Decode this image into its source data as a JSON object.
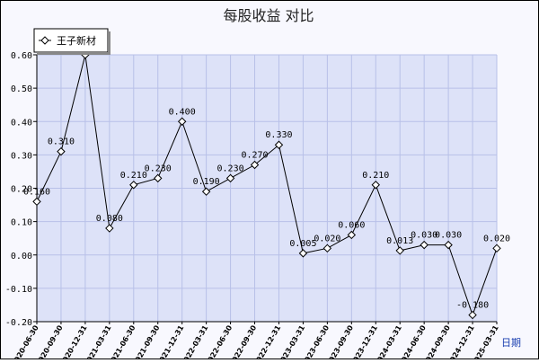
{
  "chart_data": {
    "type": "line",
    "title": "每股收益  对比",
    "xlabel": "日期",
    "ylabel": "",
    "ylim": [
      -0.2,
      0.6
    ],
    "yticks": [
      "0.60",
      "0.50",
      "0.40",
      "0.30",
      "0.20",
      "0.10",
      "0.00",
      "-0.10",
      "-0.20"
    ],
    "grid": true,
    "legend_position": "top-left",
    "categories": [
      "2020-06-30",
      "2020-09-30",
      "2020-12-31",
      "2021-03-31",
      "2021-06-30",
      "2021-09-30",
      "2021-12-31",
      "2022-03-31",
      "2022-06-30",
      "2022-09-30",
      "2022-12-31",
      "2023-03-31",
      "2023-06-30",
      "2023-09-30",
      "2023-12-31",
      "2024-03-31",
      "2024-06-30",
      "2024-09-30",
      "2024-12-31",
      "2025-03-31"
    ],
    "series": [
      {
        "name": "王子新材",
        "color": "#000000",
        "values": [
          0.16,
          0.31,
          0.6,
          0.08,
          0.21,
          0.23,
          0.4,
          0.19,
          0.23,
          0.27,
          0.33,
          0.005,
          0.02,
          0.06,
          0.21,
          0.013,
          0.03,
          0.03,
          -0.18,
          0.02
        ],
        "labels": [
          "0.160",
          "0.310",
          "",
          "0.080",
          "0.210",
          "0.230",
          "0.400",
          "0.190",
          "0.230",
          "0.270",
          "0.330",
          "0.005",
          "0.020",
          "0.060",
          "0.210",
          "0.013",
          "0.030",
          "0.030",
          "-0.180",
          "0.020"
        ]
      }
    ]
  },
  "colors": {
    "plot_bg": "#dde2f8",
    "grid": "#b8c0e8",
    "line": "#000000"
  }
}
